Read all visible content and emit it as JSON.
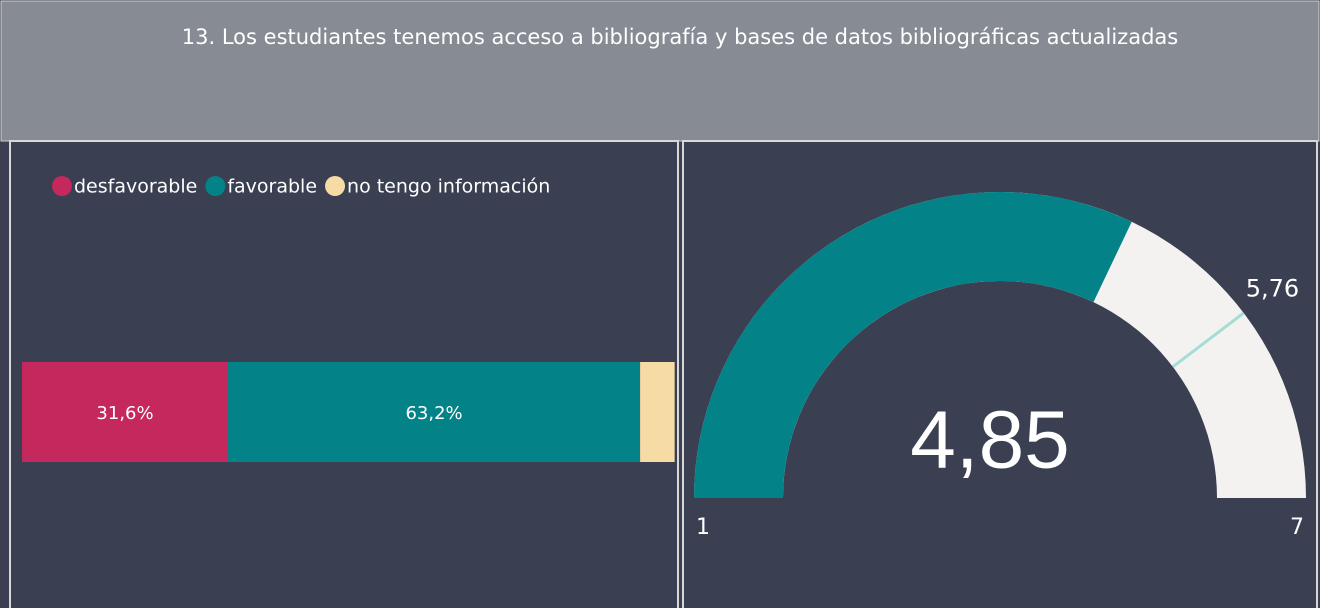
{
  "header": {
    "title": "13. Los estudiantes tenemos acceso a bibliografía y bases de datos bibliográficas actualizadas"
  },
  "chart_data": [
    {
      "type": "bar",
      "orientation": "horizontal",
      "stacked": true,
      "legend": "top-left",
      "categories": [
        null
      ],
      "xlim": [
        0,
        100
      ],
      "series": [
        {
          "name": "desfavorable",
          "color": "#c4285d",
          "values": [
            31.6
          ],
          "value_labels": [
            "31,6%"
          ]
        },
        {
          "name": "favorable",
          "color": "#038387",
          "values": [
            63.2
          ],
          "value_labels": [
            "63,2%"
          ]
        },
        {
          "name": "no tengo información",
          "color": "#f7dba4",
          "values": [
            5.3
          ]
        }
      ]
    },
    {
      "type": "gauge",
      "range": [
        1,
        7
      ],
      "value": 4.85,
      "value_label": "4,85",
      "target": 5.76,
      "target_label": "5,76",
      "color": "#038387",
      "track_color": "#f3f2f1",
      "target_color": "#a4ddd4"
    }
  ]
}
